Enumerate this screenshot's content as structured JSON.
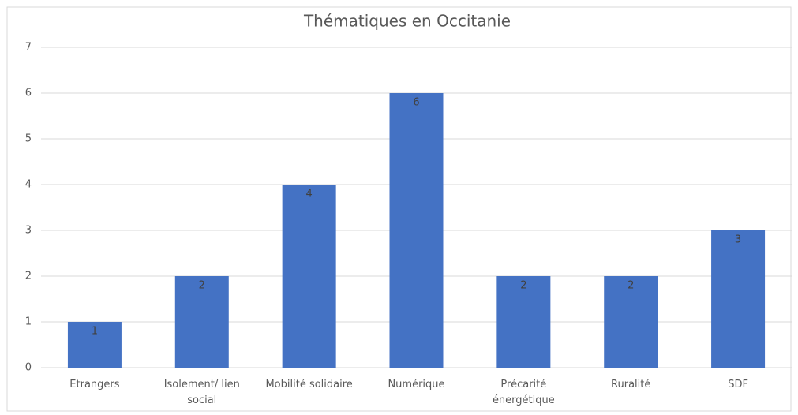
{
  "chart_data": {
    "type": "bar",
    "title": "Thématiques en Occitanie",
    "categories": [
      "Etrangers",
      "Isolement/ lien social",
      "Mobilité solidaire",
      "Numérique",
      "Précarité énergétique",
      "Ruralité",
      "SDF"
    ],
    "values": [
      1,
      2,
      4,
      6,
      2,
      2,
      3
    ],
    "color": "#4472c4",
    "ylim": [
      0,
      7
    ],
    "yticks": [
      0,
      1,
      2,
      3,
      4,
      5,
      6,
      7
    ],
    "grid": true
  }
}
